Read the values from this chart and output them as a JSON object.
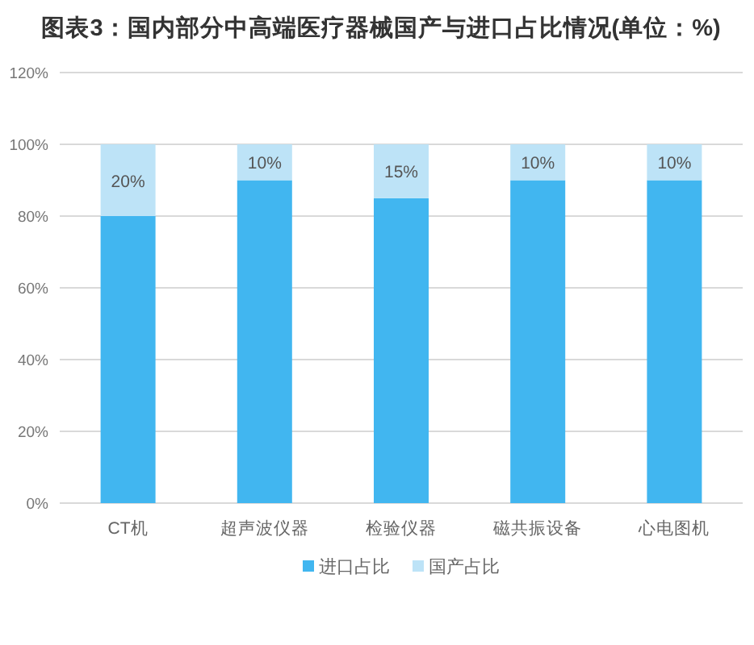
{
  "chart_data": {
    "type": "bar",
    "title": "图表3：国内部分中高端医疗器械国产与进口占比情况(单位：%)",
    "categories": [
      "CT机",
      "超声波仪器",
      "检验仪器",
      "磁共振设备",
      "心电图机"
    ],
    "stacked": true,
    "series": [
      {
        "name": "进口占比",
        "color": "#41b6f0",
        "values": [
          80,
          90,
          85,
          90,
          90
        ]
      },
      {
        "name": "国产占比",
        "color": "#bde3f7",
        "values": [
          20,
          10,
          15,
          10,
          10
        ],
        "value_labels": [
          "20%",
          "10%",
          "15%",
          "10%",
          "10%"
        ]
      }
    ],
    "ylim": [
      0,
      120
    ],
    "yticks": [
      {
        "value": 0,
        "label": "0%"
      },
      {
        "value": 20,
        "label": "20%"
      },
      {
        "value": 40,
        "label": "40%"
      },
      {
        "value": 60,
        "label": "60%"
      },
      {
        "value": 80,
        "label": "80%"
      },
      {
        "value": 100,
        "label": "100%"
      },
      {
        "value": 120,
        "label": "120%"
      }
    ],
    "grid": "y",
    "legend": "bottom"
  }
}
